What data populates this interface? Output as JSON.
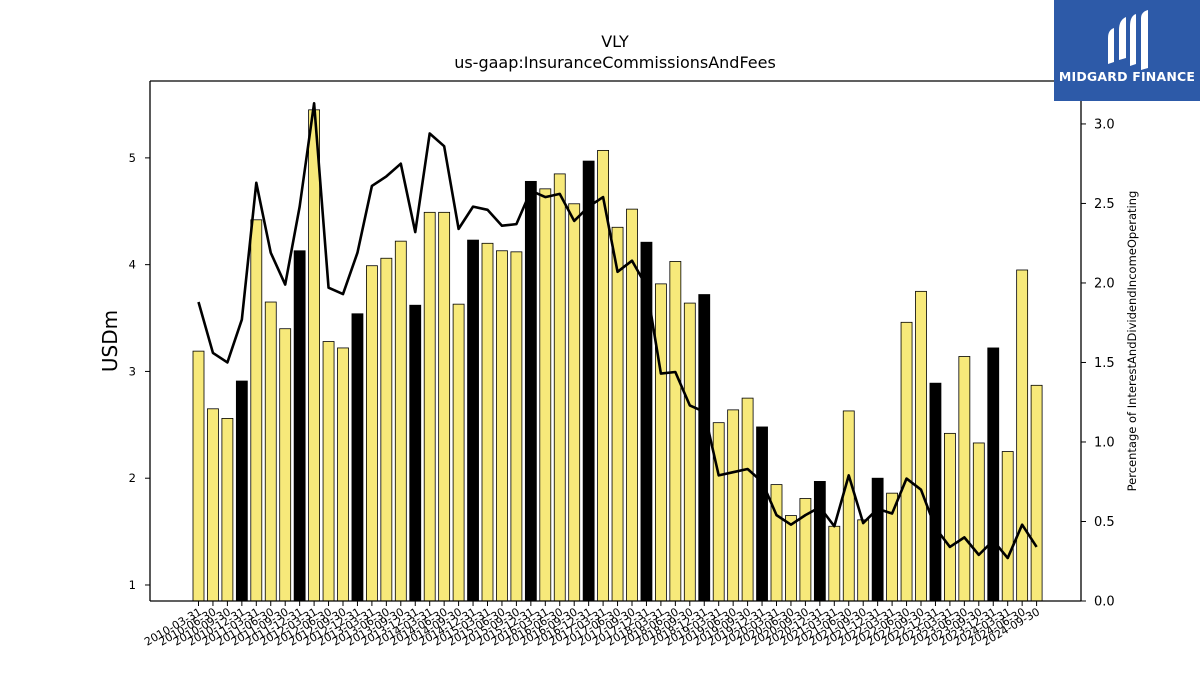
{
  "chart_data": {
    "type": "bar",
    "title": "VLY",
    "subtitle": "us-gaap:InsuranceCommissionsAndFees",
    "ylabel": "USDm",
    "y2label": "Percentage of InterestAndDividendIncomeOperating",
    "ylim": [
      0.85,
      5.72
    ],
    "y2lim": [
      0.0,
      3.27
    ],
    "yticks": [
      1,
      2,
      3,
      4,
      5
    ],
    "y2ticks": [
      "0.0",
      "0.5",
      "1.0",
      "1.5",
      "2.0",
      "2.5",
      "3.0"
    ],
    "categories": [
      "2010-03-31",
      "2010-06-30",
      "2010-09-30",
      "2010-12-31",
      "2011-03-31",
      "2011-06-30",
      "2011-09-30",
      "2011-12-31",
      "2012-03-31",
      "2012-06-30",
      "2012-09-30",
      "2012-12-31",
      "2013-03-31",
      "2013-06-30",
      "2013-09-30",
      "2013-12-31",
      "2014-03-31",
      "2014-06-30",
      "2014-09-30",
      "2014-12-31",
      "2015-03-31",
      "2015-06-30",
      "2015-09-30",
      "2015-12-31",
      "2016-03-31",
      "2016-06-30",
      "2016-09-30",
      "2016-12-31",
      "2017-03-31",
      "2017-06-30",
      "2017-09-30",
      "2017-12-31",
      "2018-03-31",
      "2018-06-30",
      "2018-09-30",
      "2018-12-31",
      "2019-03-31",
      "2019-06-30",
      "2019-09-30",
      "2019-12-31",
      "2020-03-31",
      "2020-06-30",
      "2020-09-30",
      "2020-12-31",
      "2021-03-31",
      "2021-06-30",
      "2021-09-30",
      "2021-12-31",
      "2022-03-31",
      "2022-06-30",
      "2022-09-30",
      "2022-12-31",
      "2023-03-31",
      "2023-06-30",
      "2023-09-30",
      "2023-12-31",
      "2024-03-31",
      "2024-06-30",
      "2024-09-30"
    ],
    "series": [
      {
        "kind": "bar",
        "values": [
          3.19,
          2.65,
          2.56,
          2.91,
          4.42,
          3.65,
          3.4,
          4.13,
          5.45,
          3.28,
          3.22,
          3.54,
          3.99,
          4.06,
          4.22,
          3.62,
          4.49,
          4.49,
          3.63,
          4.23,
          4.2,
          4.13,
          4.12,
          4.78,
          4.71,
          4.85,
          4.57,
          4.97,
          5.07,
          4.35,
          4.52,
          4.21,
          3.82,
          4.03,
          3.64,
          3.72,
          2.52,
          2.64,
          2.75,
          2.48,
          1.94,
          1.65,
          1.81,
          1.97,
          1.55,
          2.63,
          1.61,
          2.0,
          1.86,
          3.46,
          3.75,
          2.89,
          2.42,
          3.14,
          2.33,
          3.22,
          2.25,
          3.95,
          2.87
        ],
        "highlight": [
          false,
          false,
          false,
          true,
          false,
          false,
          false,
          true,
          false,
          false,
          false,
          true,
          false,
          false,
          false,
          true,
          false,
          false,
          false,
          true,
          false,
          false,
          false,
          true,
          false,
          false,
          false,
          true,
          false,
          false,
          false,
          true,
          false,
          false,
          false,
          true,
          false,
          false,
          false,
          true,
          false,
          false,
          false,
          true,
          false,
          false,
          false,
          true,
          false,
          false,
          false,
          true,
          false,
          false,
          false,
          true,
          false,
          false,
          false
        ]
      },
      {
        "kind": "line",
        "axis": "right",
        "values": [
          1.88,
          1.56,
          1.5,
          1.77,
          2.63,
          2.19,
          1.99,
          2.48,
          3.13,
          1.97,
          1.93,
          2.19,
          2.61,
          2.67,
          2.75,
          2.32,
          2.94,
          2.86,
          2.34,
          2.48,
          2.46,
          2.36,
          2.37,
          2.58,
          2.54,
          2.56,
          2.39,
          2.48,
          2.54,
          2.07,
          2.14,
          1.98,
          1.43,
          1.44,
          1.23,
          1.19,
          0.79,
          0.81,
          0.83,
          0.75,
          0.54,
          0.48,
          0.54,
          0.59,
          0.47,
          0.79,
          0.49,
          0.58,
          0.55,
          0.77,
          0.7,
          0.46,
          0.34,
          0.4,
          0.29,
          0.38,
          0.27,
          0.48,
          0.34
        ]
      }
    ],
    "colors": {
      "bar": "#f7e97a",
      "bar_highlight": "#000000",
      "line": "#000000"
    }
  },
  "brand": {
    "name": "MIDGARD FINANCE",
    "color": "#2d5aa8"
  }
}
